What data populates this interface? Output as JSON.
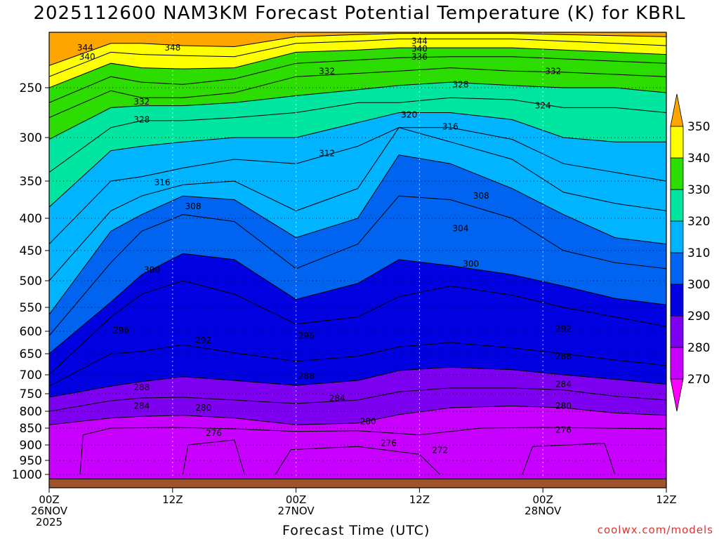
{
  "title": "2025112600 NAM3KM Forecast Potential Temperature (K) for KBRL",
  "credit": "coolwx.com/models",
  "chart_data": {
    "type": "heatmap",
    "title": "2025112600 NAM3KM Forecast Potential Temperature (K) for KBRL",
    "xlabel": "Forecast Time (UTC)",
    "ylabel": "",
    "x_ticks": [
      {
        "hour": 0,
        "lines": [
          "00Z",
          "26NOV",
          "2025"
        ]
      },
      {
        "hour": 12,
        "lines": [
          "12Z"
        ]
      },
      {
        "hour": 24,
        "lines": [
          "00Z",
          "27NOV"
        ]
      },
      {
        "hour": 36,
        "lines": [
          "12Z"
        ]
      },
      {
        "hour": 48,
        "lines": [
          "00Z",
          "28NOV"
        ]
      },
      {
        "hour": 60,
        "lines": [
          "12Z"
        ]
      }
    ],
    "xlim": [
      0,
      60
    ],
    "y_ticks": [
      250,
      300,
      350,
      400,
      450,
      500,
      550,
      600,
      650,
      700,
      750,
      800,
      850,
      900,
      950,
      1000
    ],
    "ylim_hpa": [
      200,
      1030
    ],
    "ground_level_hpa": 1010,
    "colorbar": {
      "levels": [
        270,
        280,
        290,
        300,
        310,
        320,
        330,
        340,
        350
      ],
      "labels": [
        "270",
        "280",
        "290",
        "300",
        "310",
        "320",
        "330",
        "340",
        "350"
      ],
      "colors": [
        "#ff00ff",
        "#c800ff",
        "#7d00f0",
        "#0000e0",
        "#0064f0",
        "#00b4ff",
        "#00e6a0",
        "#2ddc00",
        "#ffff00",
        "#ffa500"
      ]
    },
    "contour_interval_K": 4,
    "isentrope_profiles": {
      "hours": [
        0,
        6,
        9,
        13,
        18,
        24,
        30,
        34,
        39,
        45,
        50,
        55,
        60
      ],
      "theta_at_1000hPa": [
        276,
        276,
        276,
        276,
        276,
        276,
        276,
        276,
        276,
        276,
        276,
        276,
        276
      ],
      "p_of_theta": {
        "280": [
          840,
          820,
          815,
          812,
          820,
          840,
          835,
          810,
          790,
          785,
          790,
          805,
          812
        ],
        "284": [
          800,
          770,
          762,
          760,
          768,
          778,
          768,
          745,
          735,
          735,
          740,
          757,
          768
        ],
        "288": [
          760,
          730,
          718,
          705,
          715,
          728,
          715,
          690,
          682,
          688,
          700,
          712,
          725
        ],
        "292": [
          730,
          650,
          645,
          630,
          648,
          668,
          656,
          635,
          625,
          637,
          650,
          665,
          678
        ],
        "296": [
          700,
          570,
          525,
          500,
          525,
          585,
          570,
          530,
          510,
          527,
          550,
          570,
          590
        ],
        "300": [
          650,
          540,
          490,
          455,
          465,
          535,
          505,
          465,
          475,
          490,
          510,
          533,
          545
        ],
        "304": [
          610,
          470,
          420,
          395,
          405,
          480,
          440,
          370,
          375,
          400,
          450,
          470,
          480
        ],
        "308": [
          565,
          420,
          395,
          370,
          375,
          430,
          400,
          320,
          330,
          360,
          395,
          430,
          440
        ],
        "312": [
          500,
          390,
          370,
          355,
          350,
          390,
          360,
          290,
          305,
          325,
          365,
          380,
          390
        ],
        "316": [
          440,
          350,
          345,
          335,
          325,
          330,
          310,
          290,
          290,
          302,
          330,
          340,
          350
        ],
        "320": [
          385,
          315,
          310,
          305,
          300,
          300,
          285,
          275,
          275,
          282,
          300,
          305,
          305
        ],
        "324": [
          340,
          290,
          283,
          283,
          280,
          275,
          265,
          265,
          260,
          262,
          270,
          270,
          275
        ],
        "328": [
          302,
          270,
          268,
          268,
          265,
          258,
          252,
          248,
          245,
          248,
          250,
          250,
          255
        ],
        "332": [
          280,
          253,
          260,
          260,
          255,
          240,
          237,
          235,
          232,
          235,
          236,
          238,
          240
        ],
        "336": [
          265,
          240,
          245,
          247,
          242,
          228,
          225,
          223,
          222,
          222,
          224,
          226,
          228
        ],
        "340": [
          250,
          228,
          232,
          233,
          232,
          218,
          216,
          214,
          214,
          214,
          216,
          218,
          220
        ],
        "344": [
          240,
          218,
          220,
          221,
          222,
          210,
          208,
          206,
          206,
          206,
          208,
          210,
          212
        ],
        "348": [
          230,
          210,
          210,
          212,
          213,
          204,
          202,
          201,
          201,
          201,
          202,
          203,
          204
        ]
      }
    },
    "contour_labels": [
      {
        "value": "344",
        "hour": 3.5,
        "p": 214
      },
      {
        "value": "340",
        "hour": 3.7,
        "p": 222
      },
      {
        "value": "348",
        "hour": 12,
        "p": 214
      },
      {
        "value": "332",
        "hour": 9,
        "p": 264
      },
      {
        "value": "328",
        "hour": 9,
        "p": 282
      },
      {
        "value": "332",
        "hour": 27,
        "p": 235
      },
      {
        "value": "344",
        "hour": 36,
        "p": 208
      },
      {
        "value": "340",
        "hour": 36,
        "p": 215
      },
      {
        "value": "336",
        "hour": 36,
        "p": 222
      },
      {
        "value": "328",
        "hour": 40,
        "p": 247
      },
      {
        "value": "332",
        "hour": 49,
        "p": 235
      },
      {
        "value": "324",
        "hour": 48,
        "p": 268
      },
      {
        "value": "320",
        "hour": 35,
        "p": 277
      },
      {
        "value": "316",
        "hour": 39,
        "p": 289
      },
      {
        "value": "312",
        "hour": 27,
        "p": 318
      },
      {
        "value": "316",
        "hour": 11,
        "p": 352
      },
      {
        "value": "308",
        "hour": 14,
        "p": 384
      },
      {
        "value": "308",
        "hour": 42,
        "p": 370
      },
      {
        "value": "304",
        "hour": 40,
        "p": 416
      },
      {
        "value": "300",
        "hour": 10,
        "p": 482
      },
      {
        "value": "300",
        "hour": 41,
        "p": 472
      },
      {
        "value": "296",
        "hour": 7,
        "p": 598
      },
      {
        "value": "292",
        "hour": 15,
        "p": 620
      },
      {
        "value": "296",
        "hour": 25,
        "p": 610
      },
      {
        "value": "292",
        "hour": 50,
        "p": 595
      },
      {
        "value": "288",
        "hour": 50,
        "p": 657
      },
      {
        "value": "288",
        "hour": 9,
        "p": 733
      },
      {
        "value": "288",
        "hour": 25,
        "p": 704
      },
      {
        "value": "284",
        "hour": 28,
        "p": 763
      },
      {
        "value": "284",
        "hour": 50,
        "p": 725
      },
      {
        "value": "284",
        "hour": 9,
        "p": 785
      },
      {
        "value": "280",
        "hour": 15,
        "p": 790
      },
      {
        "value": "280",
        "hour": 31,
        "p": 830
      },
      {
        "value": "280",
        "hour": 50,
        "p": 785
      },
      {
        "value": "276",
        "hour": 16,
        "p": 865
      },
      {
        "value": "276",
        "hour": 33,
        "p": 895
      },
      {
        "value": "276",
        "hour": 50,
        "p": 855
      },
      {
        "value": "272",
        "hour": 38,
        "p": 917
      }
    ]
  }
}
